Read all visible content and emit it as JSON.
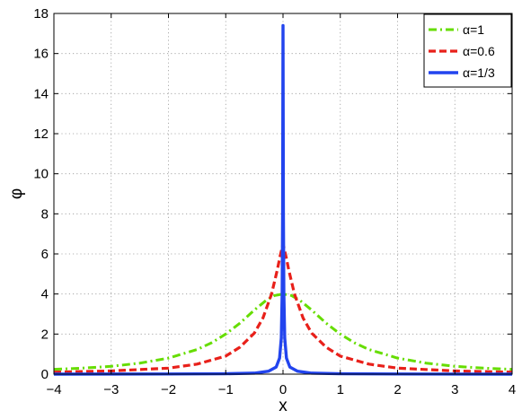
{
  "chart_data": {
    "type": "line",
    "xlabel": "x",
    "ylabel": "φ",
    "xlim": [
      -4,
      4
    ],
    "ylim": [
      0,
      18
    ],
    "xticks": [
      -4,
      -3,
      -2,
      -1,
      0,
      1,
      2,
      3,
      4
    ],
    "yticks": [
      0,
      2,
      4,
      6,
      8,
      10,
      12,
      14,
      16,
      18
    ],
    "grid": true,
    "legend_position": "top-right",
    "series": [
      {
        "name": "α=1",
        "color": "#66dd00",
        "style": "dash-dot",
        "x": [
          -4,
          -3.5,
          -3,
          -2.5,
          -2,
          -1.5,
          -1.25,
          -1,
          -0.75,
          -0.5,
          -0.3,
          -0.15,
          0,
          0.15,
          0.3,
          0.5,
          0.75,
          1,
          1.25,
          1.5,
          2,
          2.5,
          3,
          3.5,
          4
        ],
        "y": [
          0.24,
          0.3,
          0.39,
          0.55,
          0.8,
          1.23,
          1.56,
          2.0,
          2.55,
          3.2,
          3.67,
          3.92,
          4.0,
          3.92,
          3.67,
          3.2,
          2.55,
          2.0,
          1.56,
          1.23,
          0.8,
          0.55,
          0.39,
          0.3,
          0.24
        ]
      },
      {
        "name": "α=0.6",
        "color": "#e8201a",
        "style": "dashed",
        "x": [
          -4,
          -3,
          -2,
          -1.5,
          -1,
          -0.75,
          -0.5,
          -0.35,
          -0.2,
          -0.1,
          -0.05,
          0,
          0.05,
          0.1,
          0.2,
          0.35,
          0.5,
          0.75,
          1,
          1.5,
          2,
          3,
          4
        ],
        "y": [
          0.1,
          0.16,
          0.3,
          0.5,
          0.9,
          1.35,
          2.05,
          2.8,
          4.0,
          5.2,
          5.9,
          6.5,
          5.9,
          5.2,
          4.0,
          2.8,
          2.05,
          1.35,
          0.9,
          0.5,
          0.3,
          0.16,
          0.1
        ]
      },
      {
        "name": "α=1/3",
        "color": "#2244ee",
        "style": "solid",
        "x": [
          -4,
          -2,
          -1,
          -0.5,
          -0.25,
          -0.12,
          -0.06,
          -0.03,
          -0.015,
          -0.007,
          0,
          0.007,
          0.015,
          0.03,
          0.06,
          0.12,
          0.25,
          0.5,
          1,
          2,
          4
        ],
        "y": [
          0.0,
          0.01,
          0.02,
          0.05,
          0.15,
          0.35,
          0.8,
          1.8,
          4.0,
          8.0,
          17.4,
          8.0,
          4.0,
          1.8,
          0.8,
          0.35,
          0.15,
          0.05,
          0.02,
          0.01,
          0.0
        ]
      }
    ]
  }
}
